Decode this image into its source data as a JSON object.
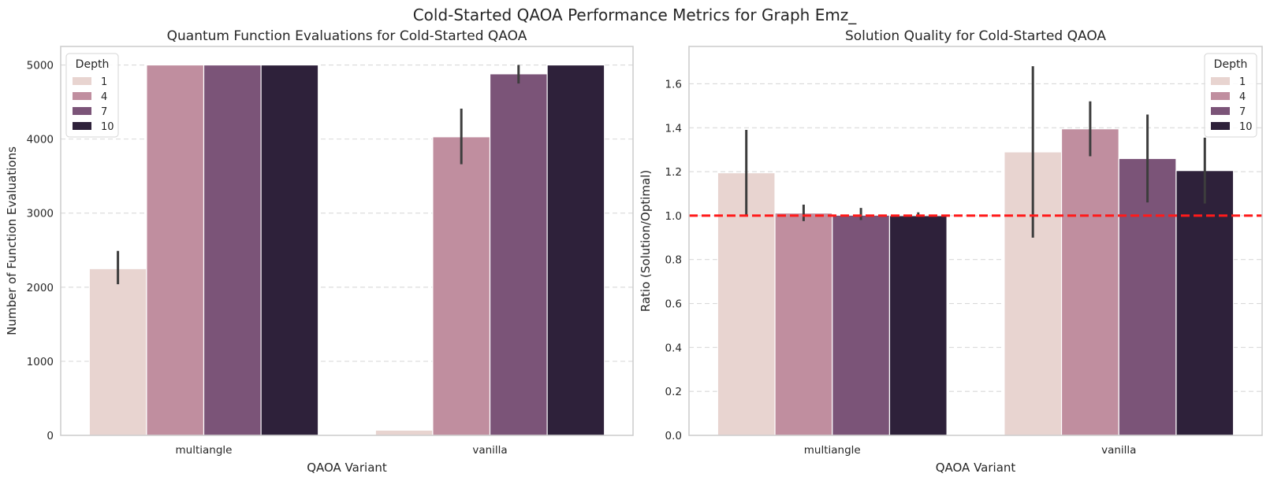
{
  "suptitle": "Cold-Started QAOA Performance Metrics for Graph Emz_",
  "chart_data": [
    {
      "type": "bar",
      "title": "Quantum Function Evaluations for Cold-Started QAOA",
      "xlabel": "QAOA Variant",
      "ylabel": "Number of Function Evaluations",
      "categories": [
        "multiangle",
        "vanilla"
      ],
      "legend_title": "Depth",
      "legend_position": "top-left",
      "ylim": [
        0,
        5250
      ],
      "yticks": [
        0,
        1000,
        2000,
        3000,
        4000,
        5000
      ],
      "ytick_labels": [
        "0",
        "1000",
        "2000",
        "3000",
        "4000",
        "5000"
      ],
      "grid": true,
      "series": [
        {
          "name": "1",
          "color": "#e8d4d0",
          "values": [
            2250,
            70
          ],
          "ci_low": [
            2040,
            null
          ],
          "ci_high": [
            2490,
            null
          ]
        },
        {
          "name": "4",
          "color": "#c08e9f",
          "values": [
            5000,
            4030
          ],
          "ci_low": [
            null,
            3660
          ],
          "ci_high": [
            null,
            4410
          ]
        },
        {
          "name": "7",
          "color": "#7b5478",
          "values": [
            5000,
            4880
          ],
          "ci_low": [
            null,
            4750
          ],
          "ci_high": [
            null,
            5000
          ]
        },
        {
          "name": "10",
          "color": "#2e213a",
          "values": [
            5000,
            5000
          ],
          "ci_low": [
            null,
            null
          ],
          "ci_high": [
            null,
            null
          ]
        }
      ]
    },
    {
      "type": "bar",
      "title": "Solution Quality for Cold-Started QAOA",
      "xlabel": "QAOA Variant",
      "ylabel": "Ratio (Solution/Optimal)",
      "categories": [
        "multiangle",
        "vanilla"
      ],
      "legend_title": "Depth",
      "legend_position": "top-right",
      "ylim": [
        0,
        1.77
      ],
      "yticks": [
        0,
        0.2,
        0.4,
        0.6,
        0.8,
        1.0,
        1.2,
        1.4,
        1.6
      ],
      "ytick_labels": [
        "0.0",
        "0.2",
        "0.4",
        "0.6",
        "0.8",
        "1.0",
        "1.2",
        "1.4",
        "1.6"
      ],
      "grid": true,
      "reference_line": {
        "y": 1.0,
        "color": "#ff1a1a",
        "style": "dashed"
      },
      "series": [
        {
          "name": "1",
          "color": "#e8d4d0",
          "values": [
            1.195,
            1.29
          ],
          "ci_low": [
            1.0,
            0.9
          ],
          "ci_high": [
            1.39,
            1.68
          ]
        },
        {
          "name": "4",
          "color": "#c08e9f",
          "values": [
            1.012,
            1.395
          ],
          "ci_low": [
            0.975,
            1.27
          ],
          "ci_high": [
            1.05,
            1.52
          ]
        },
        {
          "name": "7",
          "color": "#7b5478",
          "values": [
            1.002,
            1.26
          ],
          "ci_low": [
            0.98,
            1.06
          ],
          "ci_high": [
            1.035,
            1.46
          ]
        },
        {
          "name": "10",
          "color": "#2e213a",
          "values": [
            1.0,
            1.205
          ],
          "ci_low": [
            0.995,
            1.055
          ],
          "ci_high": [
            1.015,
            1.355
          ]
        }
      ]
    }
  ]
}
